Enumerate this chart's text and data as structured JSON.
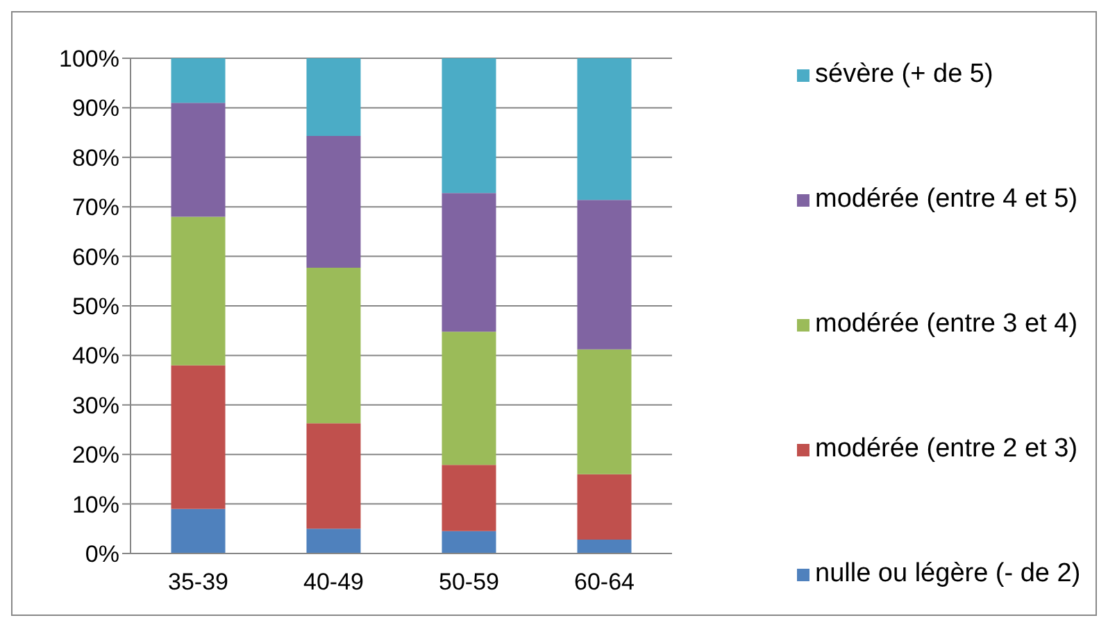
{
  "chart_data": {
    "type": "bar",
    "stacked": true,
    "categories": [
      "35-39",
      "40-49",
      "50-59",
      "60-64"
    ],
    "series": [
      {
        "name": "nulle ou légère (- de 2)",
        "color": "#4f81bd",
        "values": [
          9,
          5,
          4.5,
          2.8
        ]
      },
      {
        "name": "modérée (entre 2 et 3)",
        "color": "#c0504d",
        "values": [
          29,
          21.3,
          13.4,
          13.2
        ]
      },
      {
        "name": "modérée (entre 3 et 4)",
        "color": "#9bbb59",
        "values": [
          30,
          31.4,
          26.9,
          25.2
        ]
      },
      {
        "name": "modérée (entre 4 et 5)",
        "color": "#8064a2",
        "values": [
          23,
          26.6,
          28,
          30.2
        ]
      },
      {
        "name": "sévère (+ de 5)",
        "color": "#4bacc6",
        "values": [
          9,
          15.7,
          27.2,
          28.6
        ]
      }
    ],
    "ylim": [
      0,
      100
    ],
    "yticks": [
      {
        "value": 0,
        "label": "0%"
      },
      {
        "value": 10,
        "label": "10%"
      },
      {
        "value": 20,
        "label": "20%"
      },
      {
        "value": 30,
        "label": "30%"
      },
      {
        "value": 40,
        "label": "40%"
      },
      {
        "value": 50,
        "label": "50%"
      },
      {
        "value": 60,
        "label": "60%"
      },
      {
        "value": 70,
        "label": "70%"
      },
      {
        "value": 80,
        "label": "80%"
      },
      {
        "value": 90,
        "label": "90%"
      },
      {
        "value": 100,
        "label": "100%"
      }
    ],
    "grid": "y",
    "legend": "right"
  }
}
